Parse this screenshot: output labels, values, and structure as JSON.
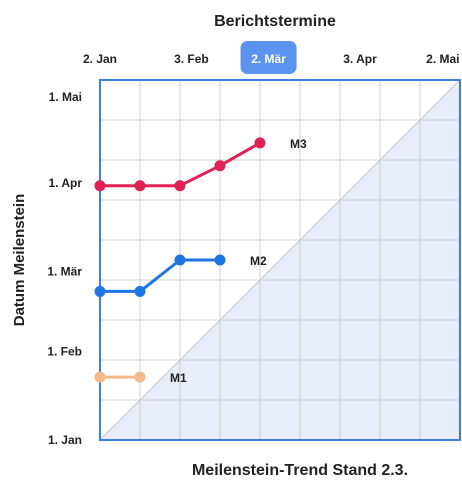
{
  "chart_data": {
    "type": "line",
    "title": "Berichtstermine",
    "caption": "Meilenstein-Trend Stand 2.3.",
    "ylabel": "Datum Meilenstein",
    "x_ticks": [
      "2. Jan",
      "3. Feb",
      "2. Mär",
      "3. Apr",
      "2. Mai"
    ],
    "y_ticks": [
      "1. Jan",
      "1. Feb",
      "1. Mär",
      "1. Apr",
      "1. Mai"
    ],
    "highlighted_x_tick": "2. Mär",
    "grid": true,
    "series": [
      {
        "name": "M1",
        "color": "#f7b98a",
        "x": [
          "2. Jan",
          "16. Jan"
        ],
        "y": [
          "23. Jan",
          "23. Jan"
        ]
      },
      {
        "name": "M2",
        "color": "#1f74e6",
        "x": [
          "2. Jan",
          "16. Jan",
          "30. Jan",
          "13. Feb"
        ],
        "y": [
          "22. Feb",
          "22. Feb",
          "5. Mär",
          "5. Mär"
        ]
      },
      {
        "name": "M3",
        "color": "#e02255",
        "x": [
          "2. Jan",
          "16. Jan",
          "30. Jan",
          "13. Feb",
          "27. Feb"
        ],
        "y": [
          "31. Mär",
          "31. Mär",
          "31. Mär",
          "7. Apr",
          "15. Apr"
        ]
      }
    ],
    "colors": {
      "axis": "#3a7ee8",
      "grid": "#d0d0d0",
      "highlight": "#5b93ef",
      "shade": "#e8ecfb",
      "diagonal": "#c8c8c8"
    }
  }
}
